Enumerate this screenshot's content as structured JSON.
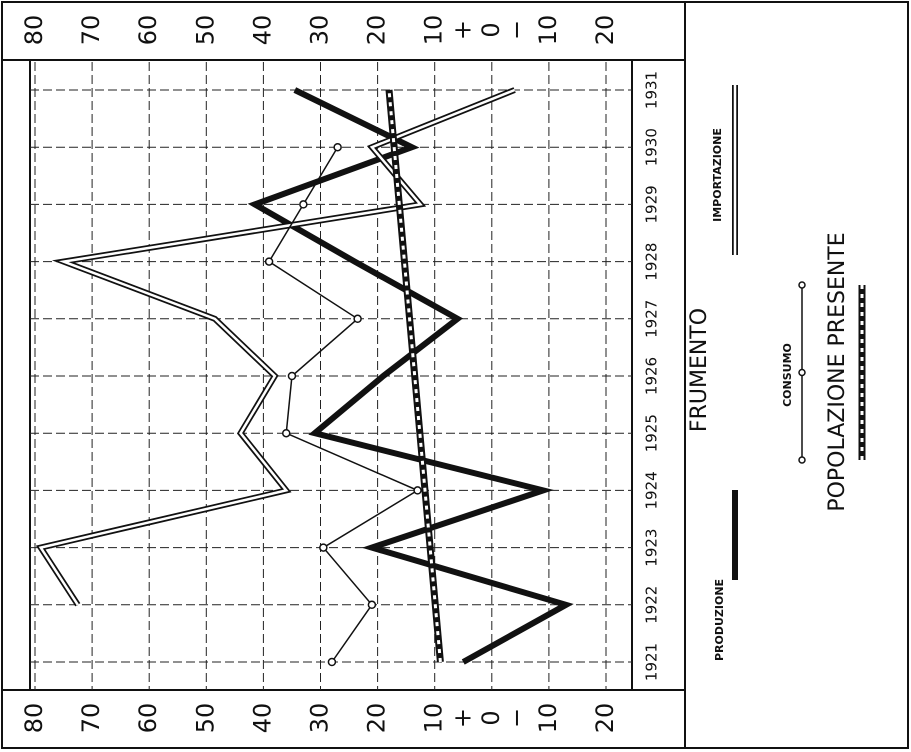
{
  "chart_data": {
    "type": "line",
    "title": "FRUMENTO",
    "x": [
      1921,
      1922,
      1923,
      1924,
      1925,
      1926,
      1927,
      1928,
      1929,
      1930,
      1931
    ],
    "xlim": [
      1921,
      1931
    ],
    "ylim": [
      -20,
      80
    ],
    "yticks": [
      80,
      70,
      60,
      50,
      40,
      30,
      20,
      10,
      {
        "value": 0,
        "label": "0"
      },
      {
        "value": -10,
        "label": "10"
      },
      {
        "value": -20,
        "label": "20"
      }
    ],
    "signs": [
      "+",
      "−"
    ],
    "grid": true,
    "series": [
      {
        "name": "PRODUZIONE",
        "color": "#111111",
        "style": "thick",
        "values": [
          5,
          -13,
          21,
          -9,
          31,
          19,
          6,
          24,
          41.5,
          14,
          34.5
        ]
      },
      {
        "name": "IMPORTAZIONE",
        "color": "#111111",
        "style": "double",
        "values": [
          null,
          72.5,
          79,
          36,
          44,
          38,
          48.5,
          75,
          12.5,
          21,
          -4
        ]
      },
      {
        "name": "CONSUMO",
        "color": "#111111",
        "style": "circles",
        "values": [
          28,
          21,
          29.5,
          13,
          36,
          35,
          23.5,
          39,
          33,
          27,
          null
        ]
      },
      {
        "name": "POPOLAZIONE PRESENTE",
        "color": "#111111",
        "style": "dashed",
        "values": [
          9,
          9.9,
          10.8,
          11.7,
          12.6,
          13.5,
          14.4,
          15.3,
          16.2,
          17.1,
          18
        ]
      }
    ]
  }
}
